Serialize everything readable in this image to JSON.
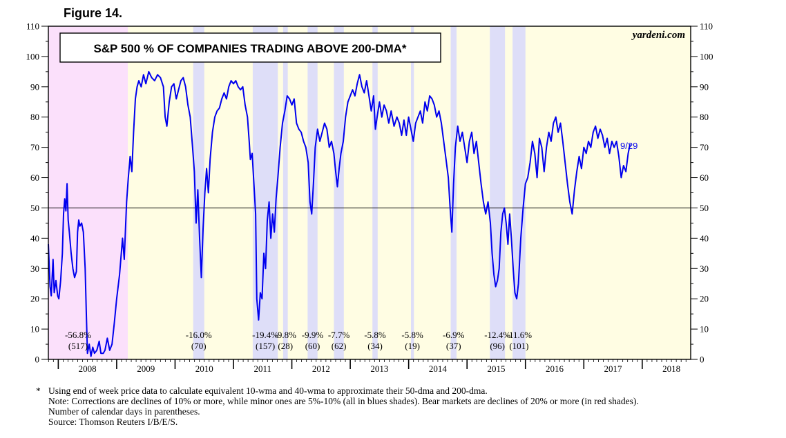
{
  "figure_label": "Figure 14.",
  "notes": {
    "asterisk": "*",
    "line1": "Using end of week price data to calculate equivalent 10-wma and 40-wma to approximate their 50-dma and 200-dma.",
    "line2": "Note: Corrections are declines of 10% or more, while minor ones are 5%-10% (all in blues shades). Bear markets are declines of 20% or more (in red shades).",
    "line3": "Number of calendar days in parentheses.",
    "source": "Source: Thomson Reuters I/B/E/S."
  },
  "chart_data": {
    "type": "line",
    "title": "S&P 500 % OF COMPANIES TRADING ABOVE 200-DMA*",
    "watermark": "yardeni.com",
    "end_label": "9/29",
    "xlabel": "",
    "ylabel": "",
    "xlim": [
      2007.83,
      2018.83
    ],
    "ylim": [
      0,
      110
    ],
    "yticks": [
      0,
      10,
      20,
      30,
      40,
      50,
      60,
      70,
      80,
      90,
      100,
      110
    ],
    "year_labels": [
      "2008",
      "2009",
      "2010",
      "2011",
      "2012",
      "2013",
      "2014",
      "2015",
      "2016",
      "2017",
      "2018"
    ],
    "reference_line": 50,
    "colors": {
      "line": "#0000ee",
      "bear_shade": "#fbe0fb",
      "correction_shade": "#dedef8",
      "background": "#fffde3",
      "end_label": "#0000ee"
    },
    "periods": [
      {
        "kind": "bear",
        "start": 2007.83,
        "end": 2009.19,
        "pct": "-56.8%",
        "days": "(517)"
      },
      {
        "kind": "correction",
        "start": 2010.31,
        "end": 2010.5,
        "pct": "-16.0%",
        "days": "(70)"
      },
      {
        "kind": "correction",
        "start": 2011.33,
        "end": 2011.76,
        "pct": "-19.4%",
        "days": "(157)"
      },
      {
        "kind": "correction",
        "start": 2011.85,
        "end": 2011.93,
        "pct": "-9.8%",
        "days": "(28)"
      },
      {
        "kind": "correction",
        "start": 2012.27,
        "end": 2012.44,
        "pct": "-9.9%",
        "days": "(60)"
      },
      {
        "kind": "correction",
        "start": 2012.72,
        "end": 2012.89,
        "pct": "-7.7%",
        "days": "(62)"
      },
      {
        "kind": "correction",
        "start": 2013.38,
        "end": 2013.47,
        "pct": "-5.8%",
        "days": "(34)"
      },
      {
        "kind": "correction",
        "start": 2014.04,
        "end": 2014.09,
        "pct": "-5.8%",
        "days": "(19)"
      },
      {
        "kind": "correction",
        "start": 2014.72,
        "end": 2014.82,
        "pct": "-6.9%",
        "days": "(37)"
      },
      {
        "kind": "correction",
        "start": 2015.39,
        "end": 2015.65,
        "pct": "-12.4%",
        "days": "(96)"
      },
      {
        "kind": "correction",
        "start": 2015.78,
        "end": 2016.0,
        "pct": "-11.6%",
        "days": "(101)"
      }
    ],
    "series": [
      {
        "name": "% of S&P 500 companies above 200-dma",
        "points": [
          [
            2007.83,
            38
          ],
          [
            2007.86,
            24
          ],
          [
            2007.88,
            21
          ],
          [
            2007.91,
            33
          ],
          [
            2007.93,
            22
          ],
          [
            2007.96,
            26
          ],
          [
            2007.99,
            21
          ],
          [
            2008.01,
            20
          ],
          [
            2008.04,
            26
          ],
          [
            2008.07,
            35
          ],
          [
            2008.09,
            48
          ],
          [
            2008.11,
            53
          ],
          [
            2008.13,
            49
          ],
          [
            2008.15,
            58
          ],
          [
            2008.17,
            46
          ],
          [
            2008.19,
            42
          ],
          [
            2008.22,
            35
          ],
          [
            2008.25,
            30
          ],
          [
            2008.28,
            27
          ],
          [
            2008.31,
            29
          ],
          [
            2008.33,
            42
          ],
          [
            2008.35,
            46
          ],
          [
            2008.37,
            44
          ],
          [
            2008.4,
            45
          ],
          [
            2008.43,
            42
          ],
          [
            2008.46,
            30
          ],
          [
            2008.48,
            15
          ],
          [
            2008.5,
            2
          ],
          [
            2008.53,
            5
          ],
          [
            2008.56,
            1
          ],
          [
            2008.59,
            4
          ],
          [
            2008.62,
            2
          ],
          [
            2008.66,
            3
          ],
          [
            2008.7,
            6
          ],
          [
            2008.73,
            2
          ],
          [
            2008.77,
            2
          ],
          [
            2008.8,
            3
          ],
          [
            2008.84,
            7
          ],
          [
            2008.88,
            3
          ],
          [
            2008.92,
            5
          ],
          [
            2008.96,
            12
          ],
          [
            2009.0,
            20
          ],
          [
            2009.05,
            28
          ],
          [
            2009.1,
            40
          ],
          [
            2009.13,
            33
          ],
          [
            2009.17,
            52
          ],
          [
            2009.2,
            60
          ],
          [
            2009.23,
            67
          ],
          [
            2009.26,
            62
          ],
          [
            2009.29,
            75
          ],
          [
            2009.32,
            86
          ],
          [
            2009.35,
            90
          ],
          [
            2009.38,
            92
          ],
          [
            2009.42,
            90
          ],
          [
            2009.46,
            94
          ],
          [
            2009.5,
            91
          ],
          [
            2009.55,
            95
          ],
          [
            2009.6,
            93
          ],
          [
            2009.65,
            92
          ],
          [
            2009.7,
            94
          ],
          [
            2009.75,
            93
          ],
          [
            2009.8,
            90
          ],
          [
            2009.83,
            80
          ],
          [
            2009.86,
            77
          ],
          [
            2009.9,
            85
          ],
          [
            2009.94,
            90
          ],
          [
            2009.98,
            91
          ],
          [
            2010.02,
            86
          ],
          [
            2010.06,
            89
          ],
          [
            2010.1,
            92
          ],
          [
            2010.14,
            93
          ],
          [
            2010.18,
            90
          ],
          [
            2010.22,
            84
          ],
          [
            2010.26,
            80
          ],
          [
            2010.3,
            70
          ],
          [
            2010.33,
            62
          ],
          [
            2010.36,
            45
          ],
          [
            2010.39,
            56
          ],
          [
            2010.42,
            40
          ],
          [
            2010.45,
            27
          ],
          [
            2010.48,
            43
          ],
          [
            2010.51,
            55
          ],
          [
            2010.54,
            63
          ],
          [
            2010.57,
            55
          ],
          [
            2010.6,
            66
          ],
          [
            2010.64,
            75
          ],
          [
            2010.68,
            80
          ],
          [
            2010.72,
            82
          ],
          [
            2010.76,
            83
          ],
          [
            2010.8,
            86
          ],
          [
            2010.84,
            88
          ],
          [
            2010.88,
            86
          ],
          [
            2010.92,
            90
          ],
          [
            2010.96,
            92
          ],
          [
            2011.0,
            91
          ],
          [
            2011.04,
            92
          ],
          [
            2011.08,
            90
          ],
          [
            2011.12,
            89
          ],
          [
            2011.16,
            90
          ],
          [
            2011.2,
            84
          ],
          [
            2011.24,
            80
          ],
          [
            2011.27,
            72
          ],
          [
            2011.29,
            66
          ],
          [
            2011.32,
            68
          ],
          [
            2011.35,
            58
          ],
          [
            2011.38,
            48
          ],
          [
            2011.4,
            20
          ],
          [
            2011.43,
            13
          ],
          [
            2011.46,
            22
          ],
          [
            2011.49,
            20
          ],
          [
            2011.52,
            35
          ],
          [
            2011.55,
            30
          ],
          [
            2011.58,
            46
          ],
          [
            2011.61,
            52
          ],
          [
            2011.64,
            40
          ],
          [
            2011.67,
            48
          ],
          [
            2011.7,
            42
          ],
          [
            2011.73,
            53
          ],
          [
            2011.76,
            60
          ],
          [
            2011.8,
            70
          ],
          [
            2011.84,
            78
          ],
          [
            2011.88,
            82
          ],
          [
            2011.92,
            87
          ],
          [
            2011.96,
            86
          ],
          [
            2012.0,
            84
          ],
          [
            2012.04,
            86
          ],
          [
            2012.08,
            78
          ],
          [
            2012.12,
            76
          ],
          [
            2012.16,
            75
          ],
          [
            2012.2,
            72
          ],
          [
            2012.24,
            70
          ],
          [
            2012.28,
            65
          ],
          [
            2012.31,
            52
          ],
          [
            2012.34,
            48
          ],
          [
            2012.37,
            58
          ],
          [
            2012.4,
            70
          ],
          [
            2012.44,
            76
          ],
          [
            2012.48,
            72
          ],
          [
            2012.52,
            75
          ],
          [
            2012.56,
            78
          ],
          [
            2012.6,
            76
          ],
          [
            2012.64,
            70
          ],
          [
            2012.68,
            72
          ],
          [
            2012.72,
            68
          ],
          [
            2012.75,
            62
          ],
          [
            2012.78,
            57
          ],
          [
            2012.81,
            63
          ],
          [
            2012.84,
            68
          ],
          [
            2012.88,
            72
          ],
          [
            2012.92,
            80
          ],
          [
            2012.96,
            85
          ],
          [
            2013.0,
            87
          ],
          [
            2013.04,
            89
          ],
          [
            2013.08,
            87
          ],
          [
            2013.12,
            91
          ],
          [
            2013.16,
            94
          ],
          [
            2013.2,
            90
          ],
          [
            2013.24,
            88
          ],
          [
            2013.28,
            92
          ],
          [
            2013.32,
            87
          ],
          [
            2013.36,
            82
          ],
          [
            2013.4,
            87
          ],
          [
            2013.43,
            76
          ],
          [
            2013.46,
            80
          ],
          [
            2013.5,
            85
          ],
          [
            2013.54,
            80
          ],
          [
            2013.58,
            84
          ],
          [
            2013.62,
            82
          ],
          [
            2013.66,
            78
          ],
          [
            2013.7,
            82
          ],
          [
            2013.75,
            77
          ],
          [
            2013.8,
            80
          ],
          [
            2013.84,
            78
          ],
          [
            2013.88,
            74
          ],
          [
            2013.92,
            79
          ],
          [
            2013.96,
            74
          ],
          [
            2014.0,
            80
          ],
          [
            2014.04,
            76
          ],
          [
            2014.08,
            72
          ],
          [
            2014.12,
            78
          ],
          [
            2014.16,
            80
          ],
          [
            2014.2,
            82
          ],
          [
            2014.24,
            78
          ],
          [
            2014.28,
            85
          ],
          [
            2014.32,
            82
          ],
          [
            2014.36,
            87
          ],
          [
            2014.4,
            86
          ],
          [
            2014.44,
            84
          ],
          [
            2014.48,
            80
          ],
          [
            2014.52,
            82
          ],
          [
            2014.56,
            78
          ],
          [
            2014.6,
            72
          ],
          [
            2014.64,
            66
          ],
          [
            2014.68,
            60
          ],
          [
            2014.71,
            50
          ],
          [
            2014.74,
            42
          ],
          [
            2014.77,
            58
          ],
          [
            2014.8,
            70
          ],
          [
            2014.84,
            77
          ],
          [
            2014.88,
            72
          ],
          [
            2014.92,
            75
          ],
          [
            2014.96,
            70
          ],
          [
            2015.0,
            65
          ],
          [
            2015.04,
            72
          ],
          [
            2015.08,
            75
          ],
          [
            2015.12,
            68
          ],
          [
            2015.16,
            72
          ],
          [
            2015.2,
            65
          ],
          [
            2015.24,
            58
          ],
          [
            2015.28,
            52
          ],
          [
            2015.32,
            48
          ],
          [
            2015.36,
            52
          ],
          [
            2015.4,
            45
          ],
          [
            2015.43,
            35
          ],
          [
            2015.46,
            28
          ],
          [
            2015.49,
            24
          ],
          [
            2015.52,
            26
          ],
          [
            2015.55,
            30
          ],
          [
            2015.58,
            42
          ],
          [
            2015.61,
            48
          ],
          [
            2015.64,
            50
          ],
          [
            2015.67,
            45
          ],
          [
            2015.7,
            38
          ],
          [
            2015.73,
            48
          ],
          [
            2015.76,
            40
          ],
          [
            2015.79,
            30
          ],
          [
            2015.82,
            22
          ],
          [
            2015.85,
            20
          ],
          [
            2015.88,
            25
          ],
          [
            2015.92,
            40
          ],
          [
            2015.96,
            50
          ],
          [
            2016.0,
            58
          ],
          [
            2016.04,
            60
          ],
          [
            2016.08,
            65
          ],
          [
            2016.12,
            72
          ],
          [
            2016.16,
            68
          ],
          [
            2016.2,
            60
          ],
          [
            2016.24,
            73
          ],
          [
            2016.28,
            70
          ],
          [
            2016.32,
            62
          ],
          [
            2016.36,
            70
          ],
          [
            2016.4,
            75
          ],
          [
            2016.44,
            72
          ],
          [
            2016.48,
            78
          ],
          [
            2016.52,
            80
          ],
          [
            2016.56,
            75
          ],
          [
            2016.6,
            78
          ],
          [
            2016.64,
            72
          ],
          [
            2016.68,
            65
          ],
          [
            2016.72,
            58
          ],
          [
            2016.76,
            52
          ],
          [
            2016.8,
            48
          ],
          [
            2016.84,
            56
          ],
          [
            2016.88,
            62
          ],
          [
            2016.92,
            67
          ],
          [
            2016.96,
            63
          ],
          [
            2017.0,
            70
          ],
          [
            2017.04,
            68
          ],
          [
            2017.08,
            72
          ],
          [
            2017.12,
            70
          ],
          [
            2017.16,
            75
          ],
          [
            2017.2,
            77
          ],
          [
            2017.24,
            73
          ],
          [
            2017.28,
            76
          ],
          [
            2017.32,
            74
          ],
          [
            2017.36,
            70
          ],
          [
            2017.4,
            73
          ],
          [
            2017.44,
            68
          ],
          [
            2017.48,
            72
          ],
          [
            2017.52,
            70
          ],
          [
            2017.56,
            72
          ],
          [
            2017.6,
            67
          ],
          [
            2017.64,
            60
          ],
          [
            2017.68,
            64
          ],
          [
            2017.72,
            62
          ],
          [
            2017.76,
            68
          ],
          [
            2017.79,
            71
          ]
        ]
      }
    ]
  }
}
